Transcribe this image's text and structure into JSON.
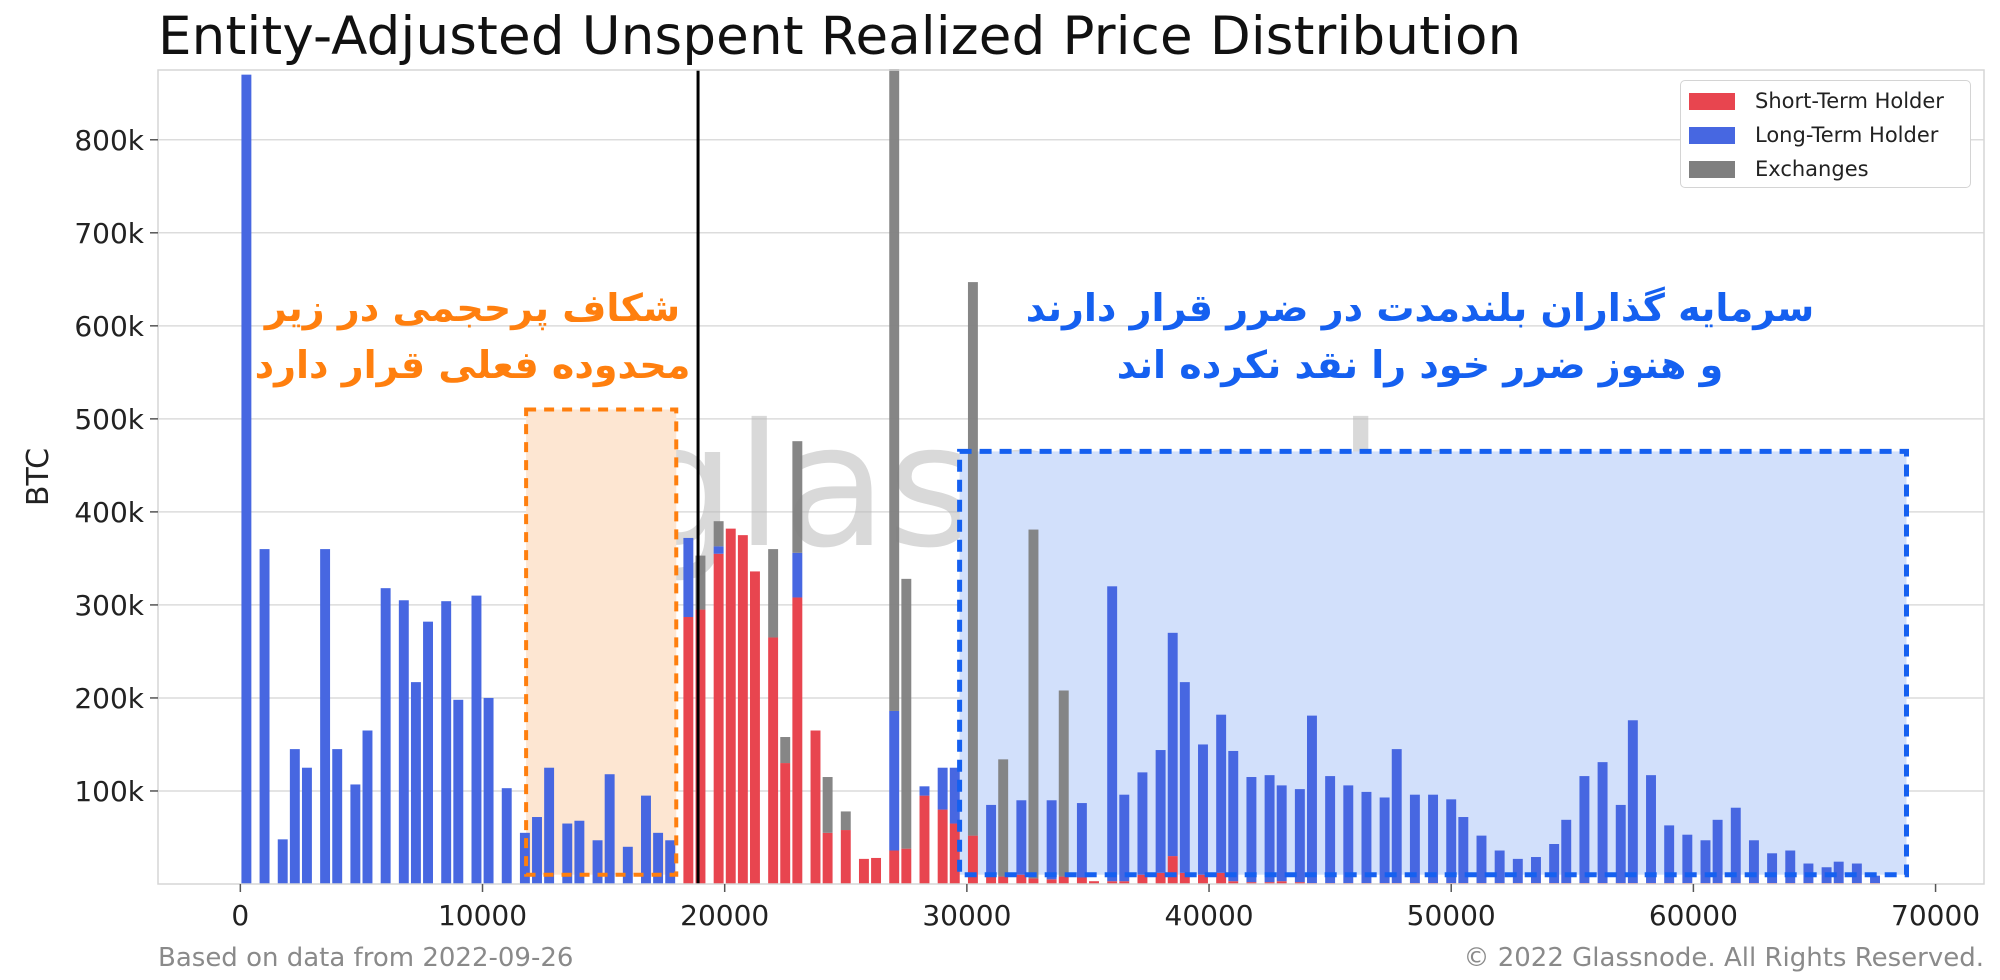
{
  "title": "Entity-Adjusted Unspent Realized Price Distribution",
  "footer": {
    "left": "Based on data from 2022-09-26",
    "right": "© 2022 Glassnode. All Rights Reserved."
  },
  "watermark": "glassnode",
  "annotations": {
    "orange": [
      "شکاف پرحجمی در زیر",
      "محدوده فعلی قرار دارد"
    ],
    "blue": [
      "سرمایه گذاران بلندمدت در ضرر قرار دارند",
      "و هنوز ضرر خود را نقد نکرده اند"
    ]
  },
  "colors": {
    "short_term_holder": "#e8454f",
    "long_term_holder": "#4767e1",
    "exchanges": "#7f7f7f",
    "orange_accent": "#ff7f0e",
    "blue_accent": "#1560f0",
    "current_price_line": "#000000"
  },
  "chart_data": {
    "type": "bar",
    "stacked": true,
    "xlabel": "",
    "ylabel": "BTC",
    "xlim": [
      -3400,
      72000
    ],
    "ylim": [
      0,
      875000
    ],
    "x_ticks": [
      0,
      10000,
      20000,
      30000,
      40000,
      50000,
      60000,
      70000
    ],
    "x_tick_labels": [
      "0",
      "10000",
      "20000",
      "30000",
      "40000",
      "50000",
      "60000",
      "70000"
    ],
    "y_ticks": [
      100000,
      200000,
      300000,
      400000,
      500000,
      600000,
      700000,
      800000
    ],
    "y_tick_labels": [
      "100k",
      "200k",
      "300k",
      "400k",
      "500k",
      "600k",
      "700k",
      "800k"
    ],
    "grid": true,
    "legend_position": "top-right",
    "bin_width": 500,
    "current_price": 18900,
    "x": [
      250,
      1000,
      1750,
      2250,
      2750,
      3500,
      4000,
      4750,
      5250,
      6000,
      6750,
      7250,
      7750,
      8500,
      9000,
      9750,
      10250,
      11000,
      11750,
      12250,
      12750,
      13500,
      14000,
      14750,
      15250,
      16000,
      16750,
      17250,
      17750,
      18500,
      19000,
      19750,
      20250,
      20750,
      21250,
      22000,
      22500,
      23000,
      23750,
      24250,
      25000,
      25750,
      26250,
      27000,
      27500,
      28250,
      29000,
      29500,
      30250,
      31000,
      31500,
      32250,
      32750,
      33500,
      34000,
      34750,
      35250,
      36000,
      36500,
      37250,
      38000,
      38500,
      39000,
      39750,
      40500,
      41000,
      41750,
      42500,
      43000,
      43750,
      44250,
      45000,
      45750,
      46500,
      47250,
      47750,
      48500,
      49250,
      50000,
      50500,
      51250,
      52000,
      52750,
      53500,
      54250,
      54750,
      55500,
      56250,
      57000,
      57500,
      58250,
      59000,
      59750,
      60500,
      61000,
      61750,
      62500,
      63250,
      64000,
      64750,
      65500,
      66000,
      66750,
      67500
    ],
    "series": [
      {
        "name": "Short-Term Holder",
        "values": [
          0,
          0,
          0,
          0,
          0,
          0,
          0,
          0,
          0,
          0,
          0,
          0,
          0,
          0,
          0,
          0,
          0,
          0,
          0,
          0,
          0,
          0,
          0,
          0,
          0,
          0,
          0,
          0,
          0,
          287000,
          295000,
          355000,
          382000,
          375000,
          336000,
          265000,
          130000,
          308000,
          165000,
          55000,
          58000,
          27000,
          28000,
          36000,
          38000,
          95000,
          80000,
          65000,
          52000,
          10000,
          8000,
          10000,
          6000,
          5000,
          8000,
          7000,
          3000,
          3000,
          3000,
          10000,
          12000,
          30000,
          12000,
          10000,
          12000,
          3000,
          2000,
          2000,
          3000,
          2000,
          1000,
          1000,
          1000,
          1000,
          1000,
          1000,
          1000,
          1000,
          1000,
          1000,
          1000,
          1000,
          1000,
          1000,
          1000,
          1000,
          1000,
          1000,
          1000,
          1000,
          1000,
          1000,
          1000,
          1000,
          1000,
          1000,
          1000,
          1000,
          1000,
          1000,
          1000,
          1000,
          1000,
          1000
        ]
      },
      {
        "name": "Long-Term Holder",
        "values": [
          870000,
          360000,
          48000,
          145000,
          125000,
          360000,
          145000,
          107000,
          165000,
          318000,
          305000,
          217000,
          282000,
          304000,
          198000,
          310000,
          200000,
          103000,
          55000,
          72000,
          125000,
          65000,
          68000,
          47000,
          118000,
          40000,
          95000,
          55000,
          47000,
          85000,
          0,
          8000,
          0,
          0,
          0,
          0,
          0,
          48000,
          0,
          0,
          0,
          0,
          0,
          150000,
          0,
          10000,
          45000,
          60000,
          0,
          75000,
          0,
          80000,
          0,
          85000,
          0,
          80000,
          0,
          317000,
          93000,
          110000,
          132000,
          240000,
          205000,
          140000,
          170000,
          140000,
          113000,
          115000,
          103000,
          100000,
          180000,
          115000,
          105000,
          98000,
          92000,
          144000,
          95000,
          95000,
          90000,
          71000,
          51000,
          35000,
          26000,
          28000,
          42000,
          68000,
          115000,
          130000,
          84000,
          175000,
          116000,
          62000,
          52000,
          46000,
          68000,
          81000,
          46000,
          32000,
          35000,
          21000,
          17000,
          23000,
          21000,
          8000
        ]
      },
      {
        "name": "Exchanges",
        "values": [
          0,
          0,
          0,
          0,
          0,
          0,
          0,
          0,
          0,
          0,
          0,
          0,
          0,
          0,
          0,
          0,
          0,
          0,
          0,
          0,
          0,
          0,
          0,
          0,
          0,
          0,
          0,
          0,
          0,
          0,
          58000,
          27000,
          0,
          0,
          0,
          95000,
          28000,
          120000,
          0,
          60000,
          20000,
          0,
          0,
          690000,
          290000,
          0,
          0,
          0,
          595000,
          0,
          126000,
          0,
          375000,
          0,
          200000,
          0,
          0,
          0,
          0,
          0,
          0,
          0,
          0,
          0,
          0,
          0,
          0,
          0,
          0,
          0,
          0,
          0,
          0,
          0,
          0,
          0,
          0,
          0,
          0,
          0,
          0,
          0,
          0,
          0,
          0,
          0,
          0,
          0,
          0,
          0,
          0,
          0,
          0,
          0,
          0,
          0,
          0,
          0,
          0,
          0,
          0,
          0,
          0,
          0
        ]
      }
    ],
    "highlight_regions": [
      {
        "x_range": [
          11800,
          18000
        ],
        "y_range": [
          10000,
          510000
        ],
        "color": "orange"
      },
      {
        "x_range": [
          29700,
          68800
        ],
        "y_range": [
          10000,
          465000
        ],
        "color": "blue"
      }
    ]
  }
}
